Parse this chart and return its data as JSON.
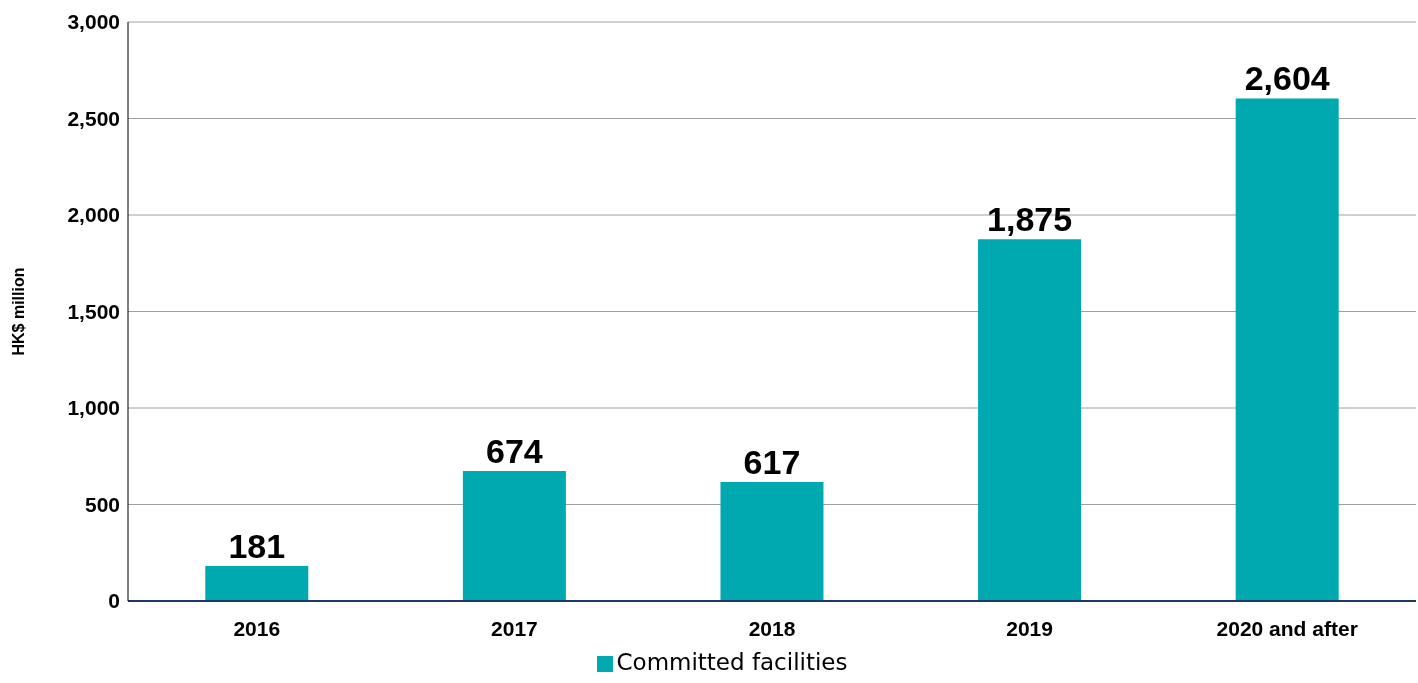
{
  "chart_data": {
    "type": "bar",
    "ylabel": "HK$ million",
    "categories": [
      "2016",
      "2017",
      "2018",
      "2019",
      "2020 and after"
    ],
    "series": [
      {
        "name": "Committed facilities",
        "color": "#00a8b0",
        "values": [
          181,
          674,
          617,
          1875,
          2604
        ],
        "value_labels": [
          "181",
          "674",
          "617",
          "1,875",
          "2,604"
        ]
      }
    ],
    "ylim": [
      0,
      3000
    ],
    "yticks": [
      0,
      500,
      {
        "value": 1000,
        "label": "1,000"
      },
      {
        "value": 1500,
        "label": "1,500"
      },
      {
        "value": 2000,
        "label": "2,000"
      },
      {
        "value": 2500,
        "label": "2,500"
      },
      {
        "value": 3000,
        "label": "3,000"
      }
    ],
    "grid": "y",
    "legend": "bottom"
  }
}
